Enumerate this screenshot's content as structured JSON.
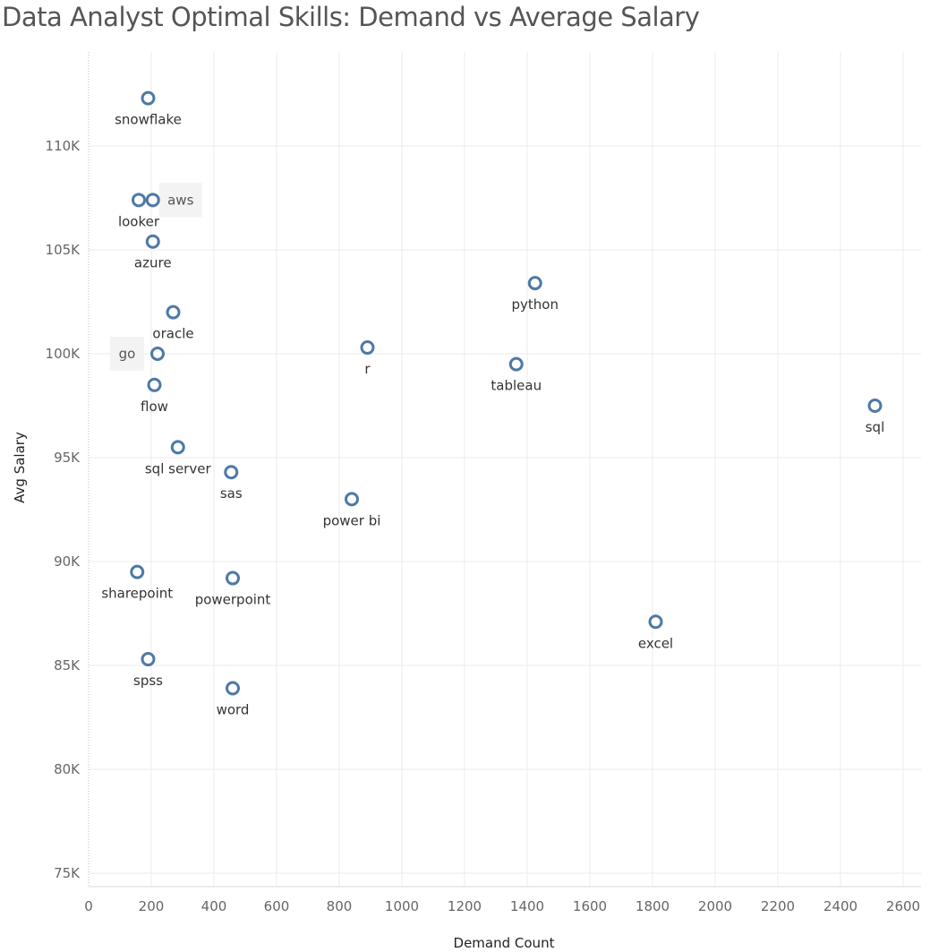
{
  "chart_data": {
    "type": "scatter",
    "title": "Data Analyst Optimal Skills: Demand vs Average Salary",
    "xlabel": "Demand Count",
    "ylabel": "Avg Salary",
    "xlim": [
      0,
      2650
    ],
    "ylim": [
      73800,
      116300
    ],
    "x_ticks": [
      0,
      200,
      400,
      600,
      800,
      1000,
      1200,
      1400,
      1600,
      1800,
      2000,
      2200,
      2400,
      2600
    ],
    "y_ticks": [
      75000,
      80000,
      85000,
      90000,
      95000,
      100000,
      105000,
      110000
    ],
    "y_tick_labels": [
      "75K",
      "80K",
      "85K",
      "90K",
      "95K",
      "100K",
      "105K",
      "110K"
    ],
    "grid": true,
    "marker_color": "#4e79a7",
    "points": [
      {
        "label": "snowflake",
        "x": 190,
        "y": 112300,
        "label_pos": "below"
      },
      {
        "label": "looker",
        "x": 160,
        "y": 107400,
        "label_pos": "below"
      },
      {
        "label": "aws",
        "x": 205,
        "y": 107400,
        "label_pos": "right",
        "highlight": true
      },
      {
        "label": "azure",
        "x": 205,
        "y": 105400,
        "label_pos": "below"
      },
      {
        "label": "python",
        "x": 1425,
        "y": 103400,
        "label_pos": "below"
      },
      {
        "label": "oracle",
        "x": 270,
        "y": 102000,
        "label_pos": "below"
      },
      {
        "label": "r",
        "x": 890,
        "y": 100300,
        "label_pos": "below"
      },
      {
        "label": "go",
        "x": 220,
        "y": 100000,
        "label_pos": "left",
        "highlight": true
      },
      {
        "label": "tableau",
        "x": 1365,
        "y": 99500,
        "label_pos": "below"
      },
      {
        "label": "flow",
        "x": 210,
        "y": 98500,
        "label_pos": "below"
      },
      {
        "label": "sql",
        "x": 2510,
        "y": 97500,
        "label_pos": "below"
      },
      {
        "label": "sql server",
        "x": 285,
        "y": 95500,
        "label_pos": "below"
      },
      {
        "label": "sas",
        "x": 455,
        "y": 94300,
        "label_pos": "below"
      },
      {
        "label": "power bi",
        "x": 840,
        "y": 93000,
        "label_pos": "below"
      },
      {
        "label": "sharepoint",
        "x": 155,
        "y": 89500,
        "label_pos": "below"
      },
      {
        "label": "powerpoint",
        "x": 460,
        "y": 89200,
        "label_pos": "below"
      },
      {
        "label": "excel",
        "x": 1810,
        "y": 87100,
        "label_pos": "below"
      },
      {
        "label": "spss",
        "x": 190,
        "y": 85300,
        "label_pos": "below"
      },
      {
        "label": "word",
        "x": 460,
        "y": 83900,
        "label_pos": "below"
      }
    ]
  }
}
